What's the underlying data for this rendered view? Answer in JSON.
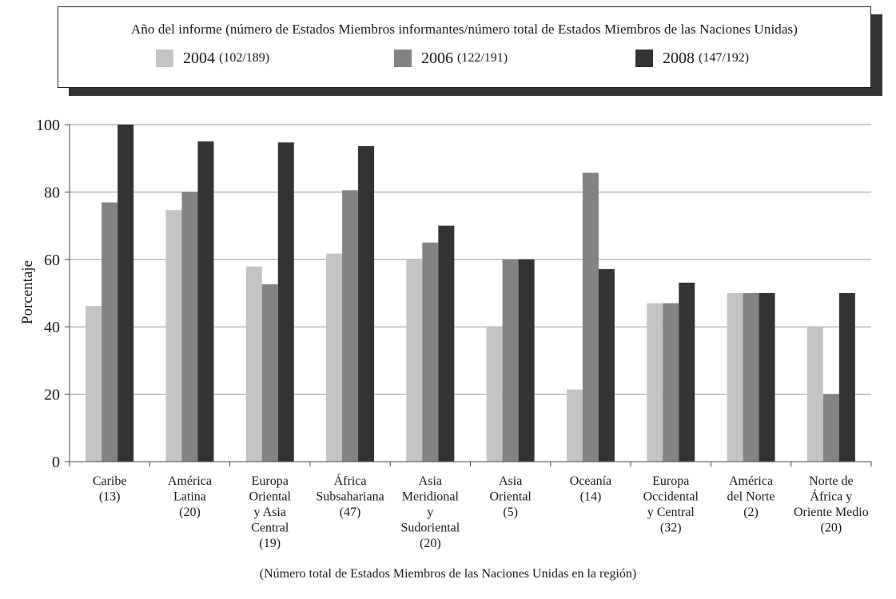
{
  "legend": {
    "title": "Año del informe (número de Estados Miembros informantes/número total de Estados Miembros de las Naciones Unidas)",
    "items": [
      {
        "year": "2004",
        "note": "(102/189)",
        "color": "#c4c4c4"
      },
      {
        "year": "2006",
        "note": "(122/191)",
        "color": "#838383"
      },
      {
        "year": "2008",
        "note": "(147/192)",
        "color": "#333333"
      }
    ]
  },
  "chart_data": {
    "type": "bar",
    "title": "",
    "xlabel": "(Número total de Estados Miembros de las Naciones Unidas en la región)",
    "ylabel": "Porcentaje",
    "ylim": [
      0,
      100
    ],
    "yticks": [
      0,
      20,
      40,
      60,
      80,
      100
    ],
    "grid": true,
    "legend_position": "top",
    "categories": [
      [
        "Caribe",
        "(13)"
      ],
      [
        "América",
        "Latina",
        "(20)"
      ],
      [
        "Europa",
        "Oriental",
        "y Asia",
        "Central",
        "(19)"
      ],
      [
        "África",
        "Subsahariana",
        "(47)"
      ],
      [
        "Asia",
        "Meridional",
        "y",
        "Sudoriental",
        "(20)"
      ],
      [
        "Asia",
        "Oriental",
        "(5)"
      ],
      [
        "Oceanía",
        "(14)"
      ],
      [
        "Europa",
        "Occidental",
        "y Central",
        "(32)"
      ],
      [
        "América",
        "del Norte",
        "(2)"
      ],
      [
        "Norte de",
        "África y",
        "Oriente Medio",
        "(20)"
      ]
    ],
    "series": [
      {
        "name": "2004",
        "color": "#c4c4c4",
        "values": [
          46.2,
          74.6,
          57.9,
          61.7,
          60,
          40,
          21.4,
          47,
          50,
          40
        ]
      },
      {
        "name": "2006",
        "color": "#838383",
        "values": [
          76.9,
          80,
          52.6,
          80.5,
          65,
          60,
          85.7,
          47,
          50,
          20
        ]
      },
      {
        "name": "2008",
        "color": "#333333",
        "values": [
          100,
          95,
          94.7,
          93.6,
          70,
          60,
          57.1,
          53.1,
          50,
          50
        ]
      }
    ]
  }
}
